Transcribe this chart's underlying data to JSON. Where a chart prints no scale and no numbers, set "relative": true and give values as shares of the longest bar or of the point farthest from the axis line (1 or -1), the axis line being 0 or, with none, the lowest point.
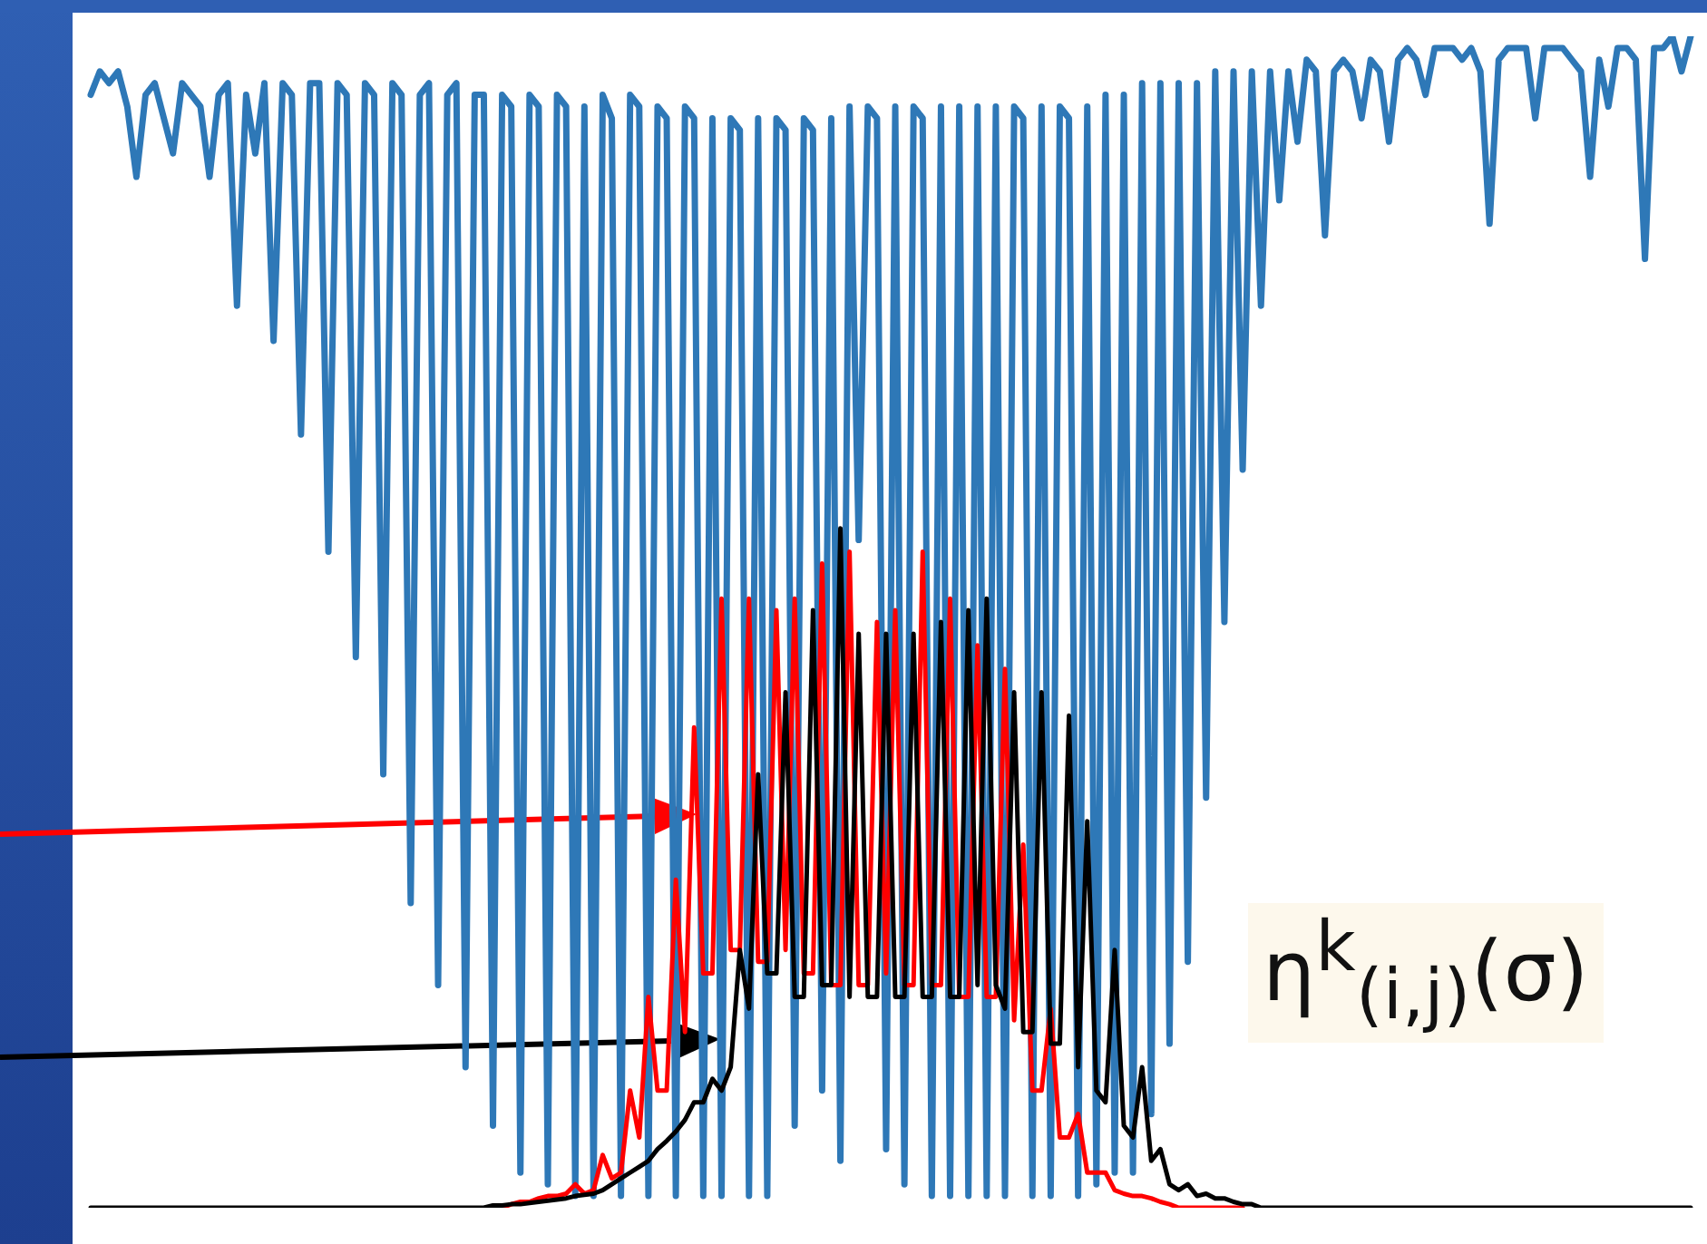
{
  "chart_data": {
    "type": "line",
    "relative": true,
    "categories": [
      null,
      null,
      null,
      null,
      null,
      null,
      null,
      null,
      null,
      null,
      null,
      null,
      null,
      null,
      null,
      null,
      null,
      null,
      null,
      null,
      null,
      null,
      null,
      null,
      null,
      null,
      null,
      null,
      null,
      null,
      null,
      null,
      null,
      null,
      null,
      null,
      null,
      null,
      null,
      null,
      null,
      null,
      null,
      null,
      null,
      null,
      null,
      null,
      null,
      null,
      null,
      null,
      null,
      null,
      null,
      null,
      null,
      null,
      null,
      null,
      null,
      null,
      null,
      null,
      null,
      null,
      null,
      null,
      null,
      null,
      null,
      null,
      null,
      null,
      null,
      null,
      null,
      null,
      null,
      null,
      null,
      null,
      null,
      null,
      null,
      null,
      null,
      null,
      null,
      null,
      null,
      null,
      null,
      null,
      null,
      null,
      null,
      null,
      null,
      null,
      null,
      null,
      null,
      null,
      null,
      null,
      null,
      null,
      null,
      null,
      null,
      null,
      null,
      null,
      null,
      null,
      null,
      null,
      null,
      null,
      null,
      null,
      null,
      null,
      null,
      null,
      null,
      null,
      null,
      null,
      null,
      null,
      null,
      null,
      null,
      null,
      null,
      null,
      null,
      null,
      null,
      null,
      null,
      null,
      null,
      null,
      null,
      null,
      null,
      null,
      null,
      null,
      null,
      null,
      null,
      null,
      null,
      null,
      null,
      null,
      null,
      null,
      null,
      null,
      null,
      null,
      null,
      null,
      null,
      null,
      null,
      null,
      null,
      null,
      null,
      null
    ],
    "series": [
      {
        "color": "#2e78b7",
        "values": [
          0.95,
          0.97,
          0.96,
          0.97,
          0.94,
          0.88,
          0.95,
          0.96,
          0.93,
          0.9,
          0.96,
          0.95,
          0.94,
          0.88,
          0.95,
          0.96,
          0.77,
          0.95,
          0.9,
          0.96,
          0.74,
          0.96,
          0.95,
          0.66,
          0.96,
          0.96,
          0.56,
          0.96,
          0.95,
          0.47,
          0.96,
          0.95,
          0.37,
          0.96,
          0.95,
          0.26,
          0.95,
          0.96,
          0.19,
          0.95,
          0.96,
          0.12,
          0.95,
          0.95,
          0.07,
          0.95,
          0.94,
          0.03,
          0.95,
          0.94,
          0.02,
          0.95,
          0.94,
          0.01,
          0.94,
          0.01,
          0.95,
          0.93,
          0.01,
          0.95,
          0.94,
          0.01,
          0.94,
          0.93,
          0.01,
          0.94,
          0.93,
          0.01,
          0.93,
          0.01,
          0.93,
          0.92,
          0.01,
          0.93,
          0.01,
          0.93,
          0.92,
          0.07,
          0.93,
          0.92,
          0.1,
          0.93,
          0.04,
          0.94,
          0.57,
          0.94,
          0.93,
          0.05,
          0.94,
          0.02,
          0.94,
          0.93,
          0.01,
          0.94,
          0.01,
          0.94,
          0.01,
          0.94,
          0.01,
          0.94,
          0.01,
          0.94,
          0.93,
          0.01,
          0.94,
          0.01,
          0.94,
          0.93,
          0.01,
          0.94,
          0.02,
          0.95,
          0.03,
          0.95,
          0.03,
          0.96,
          0.08,
          0.96,
          0.14,
          0.96,
          0.21,
          0.96,
          0.35,
          0.97,
          0.5,
          0.97,
          0.63,
          0.97,
          0.77,
          0.97,
          0.86,
          0.97,
          0.91,
          0.98,
          0.97,
          0.83,
          0.97,
          0.98,
          0.97,
          0.93,
          0.98,
          0.97,
          0.91,
          0.98,
          0.99,
          0.98,
          0.95,
          0.99,
          0.99,
          0.99,
          0.98,
          0.99,
          0.97,
          0.84,
          0.98,
          0.99,
          0.99,
          0.99,
          0.93,
          0.99,
          0.99,
          0.99,
          0.98,
          0.97,
          0.88,
          0.98,
          0.94,
          0.99,
          0.99,
          0.98,
          0.81,
          0.99,
          0.99,
          1,
          0.97,
          1
        ]
      },
      {
        "color": "#ff0000",
        "values": [
          null,
          null,
          null,
          null,
          null,
          null,
          null,
          null,
          null,
          null,
          null,
          null,
          null,
          null,
          null,
          null,
          null,
          null,
          null,
          null,
          null,
          null,
          null,
          null,
          null,
          null,
          null,
          null,
          null,
          null,
          null,
          null,
          null,
          null,
          null,
          null,
          null,
          null,
          null,
          null,
          null,
          null,
          null,
          null,
          0,
          0,
          0.003,
          0.005,
          0.005,
          0.008,
          0.01,
          0.01,
          0.012,
          0.02,
          0.012,
          0.015,
          0.045,
          0.025,
          0.03,
          0.1,
          0.06,
          0.18,
          0.1,
          0.1,
          0.28,
          0.15,
          0.41,
          0.2,
          0.2,
          0.52,
          0.22,
          0.22,
          0.52,
          0.21,
          0.21,
          0.51,
          0.22,
          0.52,
          0.2,
          0.2,
          0.55,
          0.19,
          0.19,
          0.56,
          0.19,
          0.19,
          0.5,
          0.2,
          0.51,
          0.19,
          0.19,
          0.56,
          0.19,
          0.19,
          0.52,
          0.18,
          0.18,
          0.48,
          0.18,
          0.18,
          0.46,
          0.16,
          0.31,
          0.1,
          0.1,
          0.17,
          0.06,
          0.06,
          0.08,
          0.03,
          0.03,
          0.03,
          0.015,
          0.012,
          0.01,
          0.01,
          0.008,
          0.005,
          0.003,
          0,
          0,
          0,
          0,
          0,
          0,
          0,
          0,
          null,
          null,
          null,
          null,
          null,
          null,
          null,
          null,
          null,
          null,
          null,
          null,
          null,
          null,
          null,
          null,
          null,
          null,
          null,
          null,
          null,
          null,
          null,
          null,
          null,
          null,
          null,
          null,
          null,
          null,
          null,
          null,
          null,
          null,
          null,
          null,
          null,
          null,
          null,
          null,
          null,
          null,
          null,
          null,
          null,
          null,
          null,
          null,
          null
        ]
      },
      {
        "color": "#000000",
        "values": [
          0,
          0,
          0,
          0,
          0,
          0,
          0,
          0,
          0,
          0,
          0,
          0,
          0,
          0,
          0,
          0,
          0,
          0,
          0,
          0,
          0,
          0,
          0,
          0,
          0,
          0,
          0,
          0,
          0,
          0,
          0,
          0,
          0,
          0,
          0,
          0,
          0,
          0,
          0,
          0,
          0,
          0,
          0,
          0,
          0.002,
          0.002,
          0.003,
          0.003,
          0.004,
          0.005,
          0.006,
          0.007,
          0.008,
          0.01,
          0.011,
          0.012,
          0.015,
          0.02,
          0.025,
          0.03,
          0.035,
          0.04,
          0.05,
          0.057,
          0.065,
          0.075,
          0.09,
          0.09,
          0.11,
          0.1,
          0.12,
          0.22,
          0.17,
          0.37,
          0.2,
          0.2,
          0.44,
          0.18,
          0.18,
          0.51,
          0.19,
          0.19,
          0.58,
          0.18,
          0.49,
          0.18,
          0.18,
          0.49,
          0.18,
          0.18,
          0.49,
          0.18,
          0.18,
          0.5,
          0.18,
          0.18,
          0.51,
          0.19,
          0.52,
          0.19,
          0.17,
          0.44,
          0.15,
          0.15,
          0.44,
          0.14,
          0.14,
          0.42,
          0.12,
          0.33,
          0.1,
          0.09,
          0.22,
          0.07,
          0.06,
          0.12,
          0.04,
          0.05,
          0.02,
          0.015,
          0.02,
          0.01,
          0.012,
          0.008,
          0.008,
          0.005,
          0.003,
          0.003,
          0,
          0,
          0,
          0,
          0,
          0,
          0,
          0,
          0,
          0,
          0,
          0,
          0,
          0,
          0,
          0,
          0,
          0,
          0,
          0,
          0,
          0,
          0,
          0,
          0,
          0,
          0,
          0,
          0,
          0,
          0,
          0,
          0,
          0,
          0,
          0,
          0,
          0,
          0,
          0,
          0,
          0,
          0,
          0,
          0,
          0,
          0,
          0
        ]
      }
    ],
    "annotations": [
      "η$^{k}$$_{(i,j)}$(σ)"
    ]
  }
}
